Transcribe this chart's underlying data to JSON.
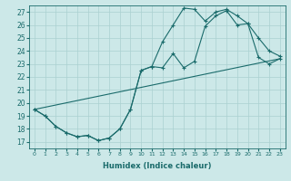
{
  "xlabel": "Humidex (Indice chaleur)",
  "bg_color": "#cce8e8",
  "line_color": "#1a6b6b",
  "grid_color": "#aad0d0",
  "x_ticks": [
    0,
    1,
    2,
    3,
    4,
    5,
    6,
    7,
    8,
    9,
    10,
    11,
    12,
    13,
    14,
    15,
    16,
    17,
    18,
    19,
    20,
    21,
    22,
    23
  ],
  "y_ticks": [
    17,
    18,
    19,
    20,
    21,
    22,
    23,
    24,
    25,
    26,
    27
  ],
  "xlim": [
    -0.5,
    23.5
  ],
  "ylim": [
    16.5,
    27.5
  ],
  "line1_x": [
    0,
    1,
    2,
    3,
    4,
    5,
    6,
    7,
    8,
    9,
    10,
    11,
    12,
    13,
    14,
    15,
    16,
    17,
    18,
    19,
    20,
    21,
    22,
    23
  ],
  "line1_y": [
    19.5,
    19.0,
    18.2,
    17.7,
    17.4,
    17.5,
    17.1,
    17.3,
    18.0,
    19.5,
    22.5,
    22.8,
    24.7,
    26.0,
    27.3,
    27.2,
    26.3,
    27.0,
    27.2,
    26.7,
    26.1,
    25.0,
    24.0,
    23.6
  ],
  "line2_x": [
    0,
    1,
    2,
    3,
    4,
    5,
    6,
    7,
    8,
    9,
    10,
    11,
    12,
    13,
    14,
    15,
    16,
    17,
    18,
    19,
    20,
    21,
    22,
    23
  ],
  "line2_y": [
    19.5,
    19.0,
    18.2,
    17.7,
    17.4,
    17.5,
    17.1,
    17.3,
    18.0,
    19.5,
    22.5,
    22.8,
    22.7,
    23.8,
    22.7,
    23.2,
    25.9,
    26.7,
    27.1,
    26.0,
    26.1,
    23.5,
    23.0,
    23.4
  ],
  "line3_x": [
    0,
    23
  ],
  "line3_y": [
    19.5,
    23.4
  ]
}
